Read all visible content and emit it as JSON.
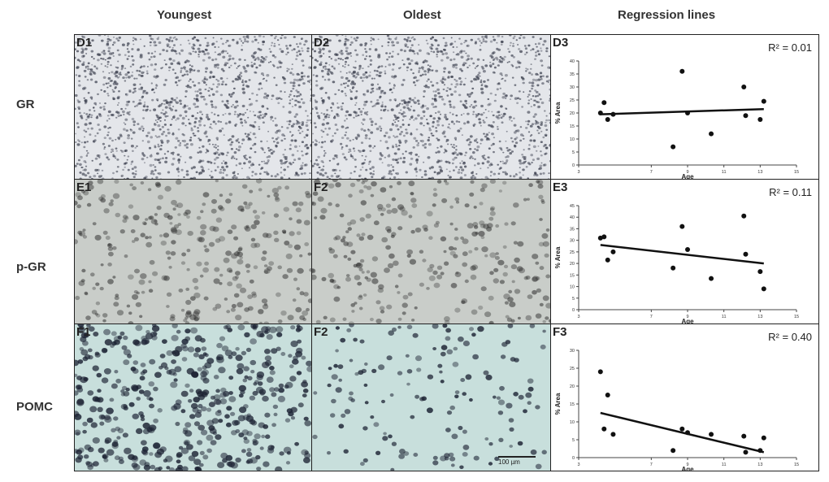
{
  "columns": {
    "youngest": "Youngest",
    "oldest": "Oldest",
    "regression": "Regression lines"
  },
  "rows": {
    "gr": "GR",
    "pgr": "p-GR",
    "pomc": "POMC"
  },
  "panels": {
    "d1": "D1",
    "d2": "D2",
    "d3": "D3",
    "e1": "E1",
    "f2_mid": "F2",
    "e3": "E3",
    "f1": "F1",
    "f2": "F2",
    "f3": "F3"
  },
  "scale_bar": "100 µm",
  "colors": {
    "gr_stain": "#3b3f4e",
    "pgr_stain": "#2a2a2a",
    "pomc_stain": "#1c2233",
    "pomc_bg": "#c8dfdc",
    "pgr_bg": "#c9cdc9",
    "gr_bg": "#e4e6ea"
  },
  "chart_data": [
    {
      "panel": "D3",
      "type": "scatter",
      "r2": "R² = 0.01",
      "xlabel": "Age",
      "ylabel": "% Area",
      "xlim": [
        3,
        15
      ],
      "ylim": [
        0,
        40
      ],
      "xticks": [
        3,
        7,
        9,
        11,
        13,
        15
      ],
      "yticks": [
        0,
        5,
        10,
        15,
        20,
        25,
        30,
        35,
        40
      ],
      "x": [
        4.2,
        4.4,
        4.6,
        4.9,
        8.2,
        8.7,
        9.0,
        10.3,
        12.1,
        12.2,
        13.0,
        13.2
      ],
      "y": [
        20,
        24,
        17.5,
        19.5,
        7,
        36,
        20,
        12,
        30,
        19,
        17.5,
        24.5
      ],
      "trend": {
        "x": [
          4.2,
          13.2
        ],
        "y": [
          19.5,
          21.5
        ]
      }
    },
    {
      "panel": "E3",
      "type": "scatter",
      "r2": "R² = 0.11",
      "xlabel": "Age",
      "ylabel": "% Area",
      "xlim": [
        3,
        15
      ],
      "ylim": [
        0,
        45
      ],
      "xticks": [
        3,
        7,
        9,
        11,
        13,
        15
      ],
      "yticks": [
        0,
        5,
        10,
        15,
        20,
        25,
        30,
        35,
        40,
        45
      ],
      "x": [
        4.2,
        4.4,
        4.6,
        4.9,
        8.2,
        8.7,
        9.0,
        10.3,
        12.1,
        12.2,
        13.0,
        13.2
      ],
      "y": [
        31,
        31.5,
        21.5,
        25,
        18,
        36,
        26,
        13.5,
        40.5,
        24,
        16.5,
        9
      ],
      "trend": {
        "x": [
          4.2,
          13.2
        ],
        "y": [
          28,
          20
        ]
      }
    },
    {
      "panel": "F3",
      "type": "scatter",
      "r2": "R² = 0.40",
      "xlabel": "Age",
      "ylabel": "% Area",
      "xlim": [
        3,
        15
      ],
      "ylim": [
        0,
        30
      ],
      "xticks": [
        3,
        7,
        9,
        11,
        13,
        15
      ],
      "yticks": [
        0,
        5,
        10,
        15,
        20,
        25,
        30
      ],
      "x": [
        4.2,
        4.4,
        4.6,
        4.9,
        8.2,
        8.7,
        9.0,
        10.3,
        12.1,
        12.2,
        13.0,
        13.2
      ],
      "y": [
        24,
        8,
        17.5,
        6.5,
        2,
        8,
        7,
        6.5,
        6,
        1.5,
        2,
        5.5
      ],
      "trend": {
        "x": [
          4.2,
          13.2
        ],
        "y": [
          12.5,
          1.5
        ]
      }
    }
  ]
}
